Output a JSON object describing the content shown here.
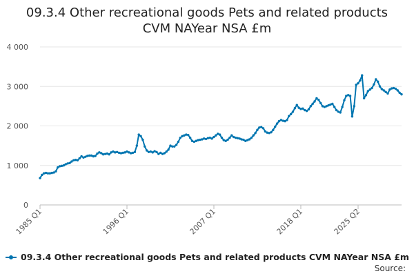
{
  "title_line1": "09.3.4 Other recreational goods Pets and related products",
  "title_line2": "CVM NAYear NSA £m",
  "source_label": "Source:",
  "chart_data": {
    "type": "line",
    "title": "09.3.4 Other recreational goods Pets and related products CVM NAYear NSA £m",
    "xlabel": "",
    "ylabel": "",
    "ylim": [
      0,
      4000
    ],
    "yticks": [
      0,
      1000,
      2000,
      3000,
      4000
    ],
    "ytick_labels": [
      "0",
      "1 000",
      "2 000",
      "3 000",
      "4 000"
    ],
    "xticks": [
      "1985 Q1",
      "1996 Q1",
      "2007 Q1",
      "2018 Q1",
      "2025 Q2"
    ],
    "x_start": "1985 Q1",
    "x_end": "2025 Q2",
    "grid": true,
    "legend_position": "bottom",
    "color": "#0075b0",
    "series": [
      {
        "name": "09.3.4 Other recreational goods Pets and related products CVM NAYear NSA £m",
        "values": [
          680,
          760,
          800,
          810,
          800,
          800,
          810,
          820,
          850,
          950,
          980,
          990,
          1000,
          1030,
          1050,
          1060,
          1100,
          1130,
          1140,
          1130,
          1180,
          1230,
          1200,
          1220,
          1240,
          1250,
          1250,
          1230,
          1240,
          1300,
          1330,
          1310,
          1280,
          1290,
          1300,
          1280,
          1330,
          1350,
          1330,
          1340,
          1320,
          1310,
          1320,
          1330,
          1350,
          1330,
          1310,
          1320,
          1340,
          1500,
          1780,
          1740,
          1650,
          1480,
          1380,
          1340,
          1350,
          1330,
          1360,
          1340,
          1290,
          1320,
          1290,
          1310,
          1350,
          1400,
          1500,
          1480,
          1480,
          1520,
          1600,
          1700,
          1740,
          1760,
          1780,
          1770,
          1700,
          1620,
          1600,
          1620,
          1640,
          1650,
          1660,
          1680,
          1670,
          1690,
          1700,
          1680,
          1720,
          1760,
          1800,
          1780,
          1700,
          1640,
          1620,
          1650,
          1700,
          1760,
          1720,
          1700,
          1690,
          1680,
          1660,
          1650,
          1620,
          1640,
          1660,
          1700,
          1760,
          1820,
          1900,
          1960,
          1970,
          1940,
          1860,
          1830,
          1820,
          1840,
          1900,
          1980,
          2060,
          2120,
          2150,
          2130,
          2120,
          2150,
          2250,
          2300,
          2360,
          2450,
          2530,
          2460,
          2430,
          2440,
          2400,
          2380,
          2420,
          2500,
          2560,
          2620,
          2700,
          2660,
          2580,
          2500,
          2480,
          2500,
          2520,
          2540,
          2560,
          2480,
          2400,
          2360,
          2340,
          2480,
          2650,
          2760,
          2780,
          2760,
          2240,
          2500,
          3040,
          3080,
          3150,
          3280,
          2700,
          2780,
          2880,
          2920,
          2960,
          3050,
          3180,
          3120,
          3000,
          2930,
          2900,
          2860,
          2820,
          2920,
          2950,
          2960,
          2940,
          2900,
          2840,
          2800
        ]
      }
    ]
  }
}
